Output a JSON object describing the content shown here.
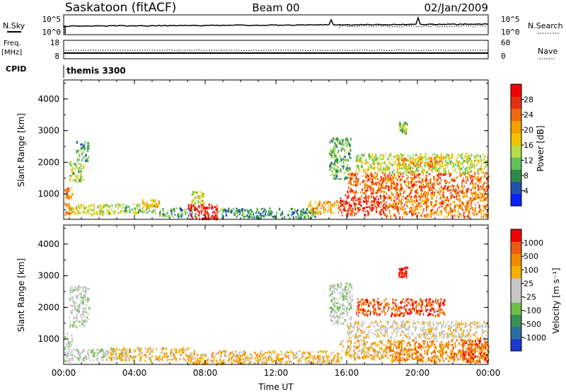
{
  "header": {
    "station": "Saskatoon (fitACF)",
    "beam": "Beam 00",
    "date": "02/Jan/2009"
  },
  "strip_labels": {
    "nsky": "N.Sky",
    "nsearch": "N.Search",
    "freq": "Freq.",
    "freq_unit": "[MHz]",
    "nave": "Nave",
    "cpid": "CPID",
    "cpid_value": "themis 3300"
  },
  "strip_ticks": {
    "nsky_left": [
      "10^5",
      "10^0"
    ],
    "nsky_right": [
      "10^5",
      "10^0"
    ],
    "freq_left": [
      "18",
      "8"
    ],
    "nave_right": [
      "60",
      "0"
    ]
  },
  "colors": {
    "power_scale": [
      "#0a22ff",
      "#1f4fb0",
      "#2f8a4a",
      "#62c05a",
      "#b6dd4a",
      "#f2c400",
      "#f5a000",
      "#f06a10",
      "#e83010",
      "#f20000"
    ],
    "velocity_scale": [
      "#1a3bd0",
      "#2a6fa0",
      "#3a8f55",
      "#6cc04a",
      "#c7c7c7",
      "#c7c7c7",
      "#f5b000",
      "#f08a00",
      "#ee5a10",
      "#f20000"
    ]
  },
  "chart_data": [
    {
      "type": "heatmap",
      "panel": "power",
      "ylabel": "Slant Range [km]",
      "xlabel": "",
      "yticks": [
        "4000",
        "3000",
        "2000",
        "1000"
      ],
      "ylim": [
        200,
        4600
      ],
      "xlim": [
        0,
        24
      ],
      "colorbar_label": "Power [dB]",
      "colorbar_ticks": [
        "28",
        "24",
        "20",
        "16",
        "12",
        "8",
        "4"
      ],
      "colorbar_range": [
        0,
        32
      ],
      "blobs": [
        {
          "t0": 0.0,
          "t1": 0.45,
          "r0": 250,
          "r1": 1250,
          "v": 22
        },
        {
          "t0": 0.3,
          "t1": 1.1,
          "r0": 1400,
          "r1": 2050,
          "v": 14
        },
        {
          "t0": 0.7,
          "t1": 1.4,
          "r0": 2050,
          "r1": 2700,
          "v": 9
        },
        {
          "t0": 0.4,
          "t1": 2.3,
          "r0": 380,
          "r1": 700,
          "v": 16
        },
        {
          "t0": 2.0,
          "t1": 5.2,
          "r0": 420,
          "r1": 720,
          "v": 13
        },
        {
          "t0": 4.4,
          "t1": 5.4,
          "r0": 600,
          "r1": 850,
          "v": 18
        },
        {
          "t0": 5.4,
          "t1": 7.4,
          "r0": 300,
          "r1": 600,
          "v": 10
        },
        {
          "t0": 7.0,
          "t1": 8.7,
          "r0": 230,
          "r1": 700,
          "v": 29
        },
        {
          "t0": 7.2,
          "t1": 7.9,
          "r0": 700,
          "r1": 1100,
          "v": 15
        },
        {
          "t0": 8.7,
          "t1": 14.2,
          "r0": 260,
          "r1": 580,
          "v": 9
        },
        {
          "t0": 13.8,
          "t1": 15.6,
          "r0": 420,
          "r1": 800,
          "v": 20
        },
        {
          "t0": 15.6,
          "t1": 18.2,
          "r0": 350,
          "r1": 1000,
          "v": 28
        },
        {
          "t0": 15.0,
          "t1": 16.2,
          "r0": 1500,
          "r1": 2800,
          "v": 11
        },
        {
          "t0": 16.0,
          "t1": 24.0,
          "r0": 1050,
          "r1": 1700,
          "v": 24
        },
        {
          "t0": 16.5,
          "t1": 24.0,
          "r0": 1700,
          "r1": 2300,
          "v": 15
        },
        {
          "t0": 18.8,
          "t1": 21.5,
          "r0": 1900,
          "r1": 2200,
          "v": 21
        },
        {
          "t0": 18.2,
          "t1": 24.0,
          "r0": 300,
          "r1": 1050,
          "v": 23
        },
        {
          "t0": 18.9,
          "t1": 19.4,
          "r0": 2950,
          "r1": 3300,
          "v": 12
        }
      ]
    },
    {
      "type": "heatmap",
      "panel": "velocity",
      "ylabel": "Slant Range [km]",
      "xlabel": "Time UT",
      "yticks": [
        "4000",
        "3000",
        "2000",
        "1000"
      ],
      "xticks": [
        "00:00",
        "04:00",
        "08:00",
        "12:00",
        "16:00",
        "20:00",
        "00:00"
      ],
      "ylim": [
        200,
        4600
      ],
      "xlim": [
        0,
        24
      ],
      "colorbar_label": "Velocity [m s⁻¹]",
      "colorbar_ticks": [
        "1000",
        "500",
        "100",
        "25",
        "-25",
        "-100",
        "-500",
        "-1000"
      ],
      "blobs": [
        {
          "t0": 0.0,
          "t1": 0.45,
          "r0": 250,
          "r1": 1250,
          "v": 4
        },
        {
          "t0": 0.3,
          "t1": 1.4,
          "r0": 1400,
          "r1": 2700,
          "v": 4
        },
        {
          "t0": 0.4,
          "t1": 4.0,
          "r0": 350,
          "r1": 700,
          "v": 4
        },
        {
          "t0": 2.5,
          "t1": 7.4,
          "r0": 350,
          "r1": 750,
          "v": 6
        },
        {
          "t0": 7.0,
          "t1": 8.7,
          "r0": 230,
          "r1": 600,
          "v": 6
        },
        {
          "t0": 8.7,
          "t1": 15.6,
          "r0": 250,
          "r1": 650,
          "v": 6
        },
        {
          "t0": 15.0,
          "t1": 16.3,
          "r0": 1500,
          "r1": 2800,
          "v": 4
        },
        {
          "t0": 15.6,
          "t1": 18.2,
          "r0": 400,
          "r1": 1000,
          "v": 6
        },
        {
          "t0": 16.0,
          "t1": 24.0,
          "r0": 1050,
          "r1": 1600,
          "v": 5
        },
        {
          "t0": 16.5,
          "t1": 21.5,
          "r0": 1750,
          "r1": 2300,
          "v": 8
        },
        {
          "t0": 18.2,
          "t1": 24.0,
          "r0": 300,
          "r1": 1000,
          "v": 7
        },
        {
          "t0": 22.5,
          "t1": 24.0,
          "r0": 300,
          "r1": 1050,
          "v": 8
        },
        {
          "t0": 18.9,
          "t1": 19.4,
          "r0": 2950,
          "r1": 3300,
          "v": 9
        }
      ]
    }
  ]
}
